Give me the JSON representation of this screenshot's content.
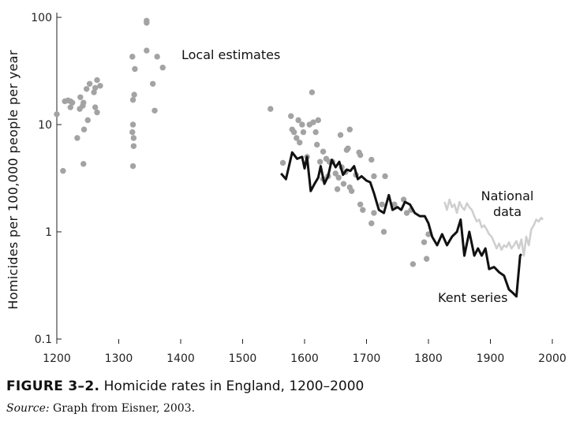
{
  "chart_data": {
    "type": "scatter",
    "yscale": "log",
    "ylabel": "Homicides per 100,000 people per year",
    "xlim": [
      1200,
      2000
    ],
    "ylim": [
      0.1,
      100
    ],
    "x_ticks": [
      1200,
      1300,
      1400,
      1500,
      1600,
      1700,
      1800,
      1900,
      2000
    ],
    "y_ticks": [
      0.1,
      1,
      10,
      100
    ],
    "y_tick_labels": [
      "0.1",
      "1",
      "10",
      "100"
    ],
    "annotations": {
      "local": "Local estimates",
      "national_line1": "National",
      "national_line2": "data",
      "kent": "Kent series"
    },
    "local_estimates": [
      [
        1200,
        12.5
      ],
      [
        1210,
        3.7
      ],
      [
        1213,
        16.5
      ],
      [
        1218,
        16.8
      ],
      [
        1222,
        16.5
      ],
      [
        1225,
        16.0
      ],
      [
        1222,
        14.5
      ],
      [
        1233,
        7.5
      ],
      [
        1238,
        18.0
      ],
      [
        1237,
        14.0
      ],
      [
        1243,
        16.0
      ],
      [
        1242,
        15.0
      ],
      [
        1244,
        9.0
      ],
      [
        1248,
        21.5
      ],
      [
        1243,
        4.3
      ],
      [
        1253,
        24.0
      ],
      [
        1250,
        11.0
      ],
      [
        1260,
        20.0
      ],
      [
        1262,
        22.0
      ],
      [
        1262,
        14.5
      ],
      [
        1265,
        13.0
      ],
      [
        1265,
        26.0
      ],
      [
        1270,
        23.0
      ],
      [
        1322,
        43.0
      ],
      [
        1325,
        19.0
      ],
      [
        1323,
        17.0
      ],
      [
        1323,
        10.0
      ],
      [
        1322,
        8.5
      ],
      [
        1324,
        7.5
      ],
      [
        1324,
        6.3
      ],
      [
        1323,
        4.1
      ],
      [
        1326,
        33.0
      ],
      [
        1345,
        93.0
      ],
      [
        1345,
        89.0
      ],
      [
        1345,
        49.0
      ],
      [
        1355,
        24.0
      ],
      [
        1358,
        13.5
      ],
      [
        1362,
        43.0
      ],
      [
        1371,
        34.0
      ],
      [
        1545,
        14.0
      ],
      [
        1565,
        4.4
      ],
      [
        1578,
        12.0
      ],
      [
        1580,
        9.0
      ],
      [
        1583,
        8.5
      ],
      [
        1587,
        7.5
      ],
      [
        1590,
        11.0
      ],
      [
        1592,
        6.8
      ],
      [
        1596,
        10.0
      ],
      [
        1598,
        8.5
      ],
      [
        1604,
        5.0
      ],
      [
        1608,
        10.0
      ],
      [
        1612,
        20.0
      ],
      [
        1614,
        10.5
      ],
      [
        1618,
        8.5
      ],
      [
        1622,
        11.0
      ],
      [
        1620,
        6.5
      ],
      [
        1625,
        4.5
      ],
      [
        1630,
        5.6
      ],
      [
        1630,
        3.1
      ],
      [
        1635,
        4.8
      ],
      [
        1638,
        3.3
      ],
      [
        1640,
        4.5
      ],
      [
        1645,
        4.5
      ],
      [
        1650,
        3.5
      ],
      [
        1653,
        2.5
      ],
      [
        1655,
        3.2
      ],
      [
        1658,
        8.0
      ],
      [
        1660,
        4.0
      ],
      [
        1663,
        2.8
      ],
      [
        1666,
        3.6
      ],
      [
        1668,
        5.8
      ],
      [
        1670,
        6.0
      ],
      [
        1673,
        9.0
      ],
      [
        1673,
        2.6
      ],
      [
        1676,
        2.4
      ],
      [
        1683,
        3.4
      ],
      [
        1688,
        5.5
      ],
      [
        1690,
        5.2
      ],
      [
        1690,
        1.8
      ],
      [
        1694,
        1.6
      ],
      [
        1708,
        4.7
      ],
      [
        1708,
        1.2
      ],
      [
        1712,
        3.3
      ],
      [
        1712,
        1.5
      ],
      [
        1725,
        1.8
      ],
      [
        1728,
        1.0
      ],
      [
        1730,
        3.3
      ],
      [
        1745,
        1.8
      ],
      [
        1760,
        2.0
      ],
      [
        1765,
        1.5
      ],
      [
        1772,
        1.6
      ],
      [
        1775,
        0.5
      ],
      [
        1793,
        0.8
      ],
      [
        1797,
        0.56
      ],
      [
        1800,
        0.95
      ]
    ],
    "national_data": [
      [
        1826,
        1.9
      ],
      [
        1830,
        1.6
      ],
      [
        1834,
        2.0
      ],
      [
        1838,
        1.7
      ],
      [
        1842,
        1.8
      ],
      [
        1846,
        1.5
      ],
      [
        1850,
        1.9
      ],
      [
        1854,
        1.7
      ],
      [
        1858,
        1.6
      ],
      [
        1862,
        1.85
      ],
      [
        1866,
        1.7
      ],
      [
        1870,
        1.6
      ],
      [
        1874,
        1.4
      ],
      [
        1878,
        1.25
      ],
      [
        1882,
        1.3
      ],
      [
        1886,
        1.1
      ],
      [
        1890,
        1.15
      ],
      [
        1894,
        1.05
      ],
      [
        1898,
        0.95
      ],
      [
        1902,
        0.9
      ],
      [
        1906,
        0.8
      ],
      [
        1910,
        0.7
      ],
      [
        1914,
        0.78
      ],
      [
        1918,
        0.68
      ],
      [
        1922,
        0.75
      ],
      [
        1926,
        0.72
      ],
      [
        1930,
        0.8
      ],
      [
        1934,
        0.7
      ],
      [
        1938,
        0.75
      ],
      [
        1942,
        0.82
      ],
      [
        1946,
        0.7
      ],
      [
        1950,
        0.85
      ],
      [
        1954,
        0.6
      ],
      [
        1958,
        0.9
      ],
      [
        1962,
        0.75
      ],
      [
        1966,
        1.05
      ],
      [
        1970,
        1.15
      ],
      [
        1974,
        1.3
      ],
      [
        1978,
        1.25
      ],
      [
        1982,
        1.35
      ],
      [
        1985,
        1.3
      ]
    ],
    "kent_series": [
      [
        1562,
        3.5
      ],
      [
        1570,
        3.1
      ],
      [
        1580,
        5.5
      ],
      [
        1588,
        4.8
      ],
      [
        1596,
        5.0
      ],
      [
        1600,
        3.9
      ],
      [
        1604,
        5.0
      ],
      [
        1610,
        2.4
      ],
      [
        1616,
        2.8
      ],
      [
        1622,
        3.2
      ],
      [
        1626,
        4.1
      ],
      [
        1632,
        2.8
      ],
      [
        1638,
        3.3
      ],
      [
        1644,
        4.7
      ],
      [
        1650,
        4.0
      ],
      [
        1656,
        4.5
      ],
      [
        1662,
        3.4
      ],
      [
        1668,
        3.8
      ],
      [
        1674,
        3.7
      ],
      [
        1680,
        4.1
      ],
      [
        1686,
        3.1
      ],
      [
        1692,
        3.3
      ],
      [
        1700,
        3.0
      ],
      [
        1706,
        2.9
      ],
      [
        1712,
        2.3
      ],
      [
        1720,
        1.6
      ],
      [
        1728,
        1.5
      ],
      [
        1736,
        2.2
      ],
      [
        1742,
        1.6
      ],
      [
        1750,
        1.7
      ],
      [
        1756,
        1.6
      ],
      [
        1762,
        1.9
      ],
      [
        1770,
        1.8
      ],
      [
        1778,
        1.5
      ],
      [
        1786,
        1.4
      ],
      [
        1794,
        1.4
      ],
      [
        1800,
        1.2
      ],
      [
        1806,
        0.9
      ],
      [
        1814,
        0.75
      ],
      [
        1822,
        0.95
      ],
      [
        1830,
        0.75
      ],
      [
        1838,
        0.9
      ],
      [
        1846,
        1.0
      ],
      [
        1852,
        1.3
      ],
      [
        1858,
        0.6
      ],
      [
        1866,
        1.0
      ],
      [
        1874,
        0.6
      ],
      [
        1880,
        0.7
      ],
      [
        1886,
        0.6
      ],
      [
        1892,
        0.7
      ],
      [
        1898,
        0.45
      ],
      [
        1906,
        0.47
      ],
      [
        1914,
        0.42
      ],
      [
        1922,
        0.39
      ],
      [
        1930,
        0.29
      ],
      [
        1936,
        0.27
      ],
      [
        1942,
        0.25
      ],
      [
        1948,
        0.6
      ],
      [
        1950,
        0.62
      ]
    ]
  },
  "caption": {
    "figure_label": "FIGURE 3–2.",
    "figure_text": " Homicide rates in England, 1200–2000",
    "source_label": "Source:",
    "source_text": " Graph from Eisner, 2003."
  },
  "colors": {
    "local": "#a3a3a3",
    "national": "#cfcfcf",
    "kent": "#111111",
    "axis": "#222222"
  }
}
